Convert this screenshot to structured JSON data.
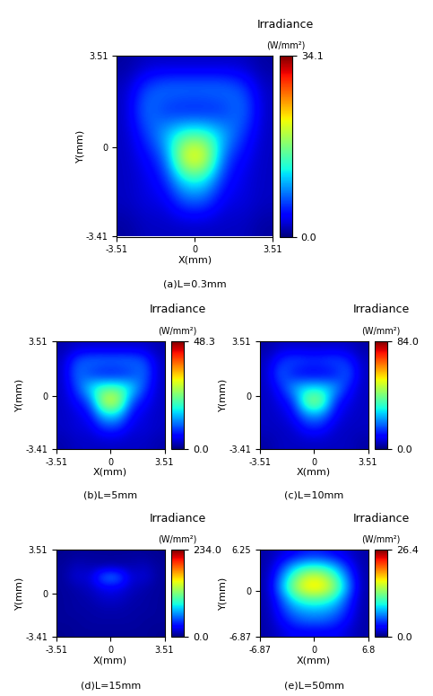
{
  "chart_data": [
    {
      "type": "heatmap",
      "title": "(a)L=0.3mm",
      "x_label": "X(mm)",
      "y_label": "Y(mm)",
      "xlim": [
        -3.51,
        3.51
      ],
      "xticks": [
        -3.51,
        0,
        3.51
      ],
      "ylim": [
        -3.41,
        3.51
      ],
      "yticks": [
        -3.41,
        0,
        3.51
      ],
      "colorbar_title": "Irradiance",
      "colorbar_label": "(W/mm²)",
      "colorbar_range": [
        0.0,
        34.1
      ],
      "colorbar_ticks": [
        0.0,
        34.1
      ],
      "cells": [
        [
          1,
          2,
          2,
          2,
          2,
          2,
          2,
          1
        ],
        [
          2,
          7,
          9,
          9,
          9,
          9,
          7,
          2
        ],
        [
          2,
          9,
          5,
          4,
          4,
          5,
          9,
          2
        ],
        [
          2,
          6,
          11,
          15,
          15,
          11,
          6,
          2
        ],
        [
          2,
          4,
          7,
          24,
          24,
          7,
          4,
          2
        ],
        [
          2,
          3,
          5,
          13,
          13,
          5,
          3,
          2
        ],
        [
          2,
          3,
          3,
          7,
          7,
          3,
          3,
          2
        ],
        [
          1,
          2,
          2,
          2,
          2,
          2,
          2,
          1
        ]
      ]
    },
    {
      "type": "heatmap",
      "title": "(b)L=5mm",
      "x_label": "X(mm)",
      "y_label": "Y(mm)",
      "xlim": [
        -3.51,
        3.51
      ],
      "xticks": [
        -3.51,
        0,
        3.51
      ],
      "ylim": [
        -3.41,
        3.51
      ],
      "yticks": [
        -3.41,
        0,
        3.51
      ],
      "colorbar_title": "Irradiance",
      "colorbar_label": "(W/mm²)",
      "colorbar_range": [
        0.0,
        48.3
      ],
      "colorbar_ticks": [
        0.0,
        48.3
      ],
      "cells": [
        [
          2,
          3,
          3,
          3,
          3,
          3,
          3,
          2
        ],
        [
          3,
          10,
          12,
          12,
          12,
          12,
          10,
          3
        ],
        [
          3,
          12,
          8,
          6,
          6,
          8,
          12,
          3
        ],
        [
          3,
          9,
          18,
          22,
          22,
          18,
          9,
          3
        ],
        [
          3,
          6,
          10,
          30,
          30,
          10,
          6,
          3
        ],
        [
          3,
          4,
          6,
          16,
          16,
          6,
          4,
          3
        ],
        [
          3,
          4,
          4,
          8,
          8,
          4,
          4,
          3
        ],
        [
          2,
          3,
          3,
          3,
          3,
          3,
          3,
          2
        ]
      ]
    },
    {
      "type": "heatmap",
      "title": "(c)L=10mm",
      "x_label": "X(mm)",
      "y_label": "Y(mm)",
      "xlim": [
        -3.51,
        3.51
      ],
      "xticks": [
        -3.51,
        0,
        3.51
      ],
      "ylim": [
        -3.41,
        3.51
      ],
      "yticks": [
        -3.41,
        0,
        3.51
      ],
      "colorbar_title": "Irradiance",
      "colorbar_label": "(W/mm²)",
      "colorbar_range": [
        0.0,
        84.0
      ],
      "colorbar_ticks": [
        0.0,
        84.0
      ],
      "cells": [
        [
          3,
          5,
          5,
          5,
          5,
          5,
          5,
          3
        ],
        [
          5,
          14,
          18,
          16,
          16,
          18,
          14,
          5
        ],
        [
          5,
          20,
          10,
          8,
          8,
          10,
          20,
          5
        ],
        [
          5,
          12,
          26,
          30,
          30,
          26,
          12,
          5
        ],
        [
          5,
          8,
          14,
          45,
          45,
          14,
          8,
          5
        ],
        [
          5,
          6,
          10,
          22,
          22,
          10,
          6,
          5
        ],
        [
          5,
          5,
          6,
          12,
          12,
          6,
          5,
          5
        ],
        [
          3,
          5,
          5,
          5,
          5,
          5,
          5,
          3
        ]
      ]
    },
    {
      "type": "heatmap",
      "title": "(d)L=15mm",
      "x_label": "X(mm)",
      "y_label": "Y(mm)",
      "xlim": [
        -3.51,
        3.51
      ],
      "xticks": [
        -3.51,
        0,
        3.51
      ],
      "ylim": [
        -3.41,
        3.51
      ],
      "yticks": [
        -3.41,
        0,
        3.51
      ],
      "colorbar_title": "Irradiance",
      "colorbar_label": "(W/mm²)",
      "colorbar_range": [
        0.0,
        234.0
      ],
      "colorbar_ticks": [
        0.0,
        234.0
      ],
      "cells": [
        [
          4,
          6,
          6,
          6,
          6,
          6,
          6,
          4
        ],
        [
          6,
          14,
          10,
          8,
          8,
          10,
          14,
          6
        ],
        [
          6,
          20,
          16,
          60,
          60,
          16,
          20,
          6
        ],
        [
          6,
          10,
          14,
          24,
          24,
          14,
          10,
          6
        ],
        [
          6,
          8,
          10,
          16,
          16,
          10,
          8,
          6
        ],
        [
          6,
          8,
          8,
          10,
          10,
          8,
          8,
          6
        ],
        [
          6,
          6,
          8,
          8,
          8,
          8,
          6,
          6
        ],
        [
          4,
          6,
          6,
          6,
          6,
          6,
          6,
          4
        ]
      ]
    },
    {
      "type": "heatmap",
      "title": "(e)L=50mm",
      "x_label": "X(mm)",
      "y_label": "Y(mm)",
      "xlim": [
        -6.87,
        6.8
      ],
      "xticks": [
        -6.87,
        0,
        6.8
      ],
      "ylim": [
        -6.87,
        6.25
      ],
      "yticks": [
        -6.87,
        0,
        6.25
      ],
      "colorbar_title": "Irradiance",
      "colorbar_label": "(W/mm²)",
      "colorbar_range": [
        0.0,
        26.4
      ],
      "colorbar_ticks": [
        0.0,
        26.4
      ],
      "cells": [
        [
          1,
          2,
          3,
          4,
          4,
          3,
          2,
          1
        ],
        [
          1,
          4,
          8,
          10,
          10,
          8,
          4,
          1
        ],
        [
          1,
          6,
          12,
          16,
          16,
          12,
          6,
          1
        ],
        [
          1,
          7,
          14,
          18,
          18,
          14,
          7,
          1
        ],
        [
          1,
          5,
          10,
          12,
          12,
          10,
          5,
          1
        ],
        [
          1,
          4,
          7,
          8,
          8,
          7,
          4,
          1
        ],
        [
          1,
          3,
          5,
          6,
          6,
          5,
          3,
          1
        ],
        [
          1,
          2,
          3,
          3,
          3,
          3,
          2,
          1
        ]
      ]
    }
  ]
}
